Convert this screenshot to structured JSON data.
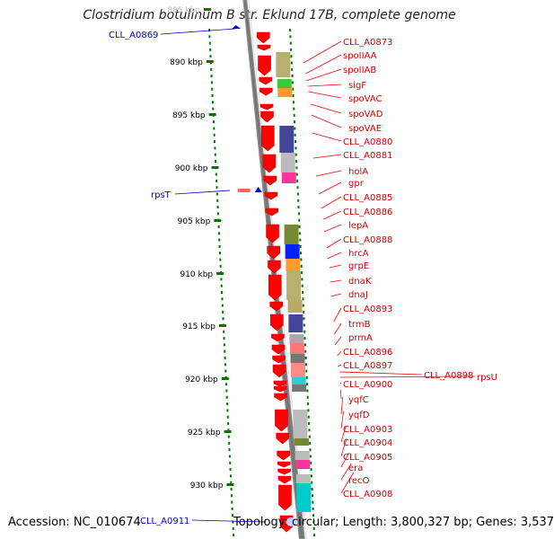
{
  "title": "Clostridium botulinum B str. Eklund 17B, complete genome",
  "accession": "Accession: NC_010674",
  "topology": "Topology: circular; Length: 3,800,327 bp; Genes: 3,537",
  "colors": {
    "gene_red": "#ff0000",
    "label_red": "#cc0000",
    "label_blue": "#0000cc",
    "tick_green": "#007700",
    "backbone": "#888888"
  },
  "ticks": [
    "885 kbp",
    "890 kbp",
    "895 kbp",
    "900 kbp",
    "905 kbp",
    "910 kbp",
    "915 kbp",
    "920 kbp",
    "925 kbp",
    "930 kbp"
  ],
  "labels_right": [
    "CLL_A0873",
    "spoIIAA",
    "spoIIAB",
    "sigF",
    "spoVAC",
    "spoVAD",
    "spoVAE",
    "CLL_A0880",
    "CLL_A0881",
    "holA",
    "gpr",
    "CLL_A0885",
    "CLL_A0886",
    "lepA",
    "CLL_A0888",
    "hrcA",
    "grpE",
    "dnaK",
    "dnaJ",
    "CLL_A0893",
    "trmB",
    "prmA",
    "CLL_A0896",
    "CLL_A0897",
    "CLL_A0898",
    "rpsU",
    "CLL_A0900",
    "yqfC",
    "yqfD",
    "CLL_A0903",
    "CLL_A0904",
    "CLL_A0905",
    "era",
    "recO",
    "CLL_A0908"
  ],
  "labels_left": [
    "CLL_A0869",
    "rpsT",
    "CLL_A0911"
  ]
}
